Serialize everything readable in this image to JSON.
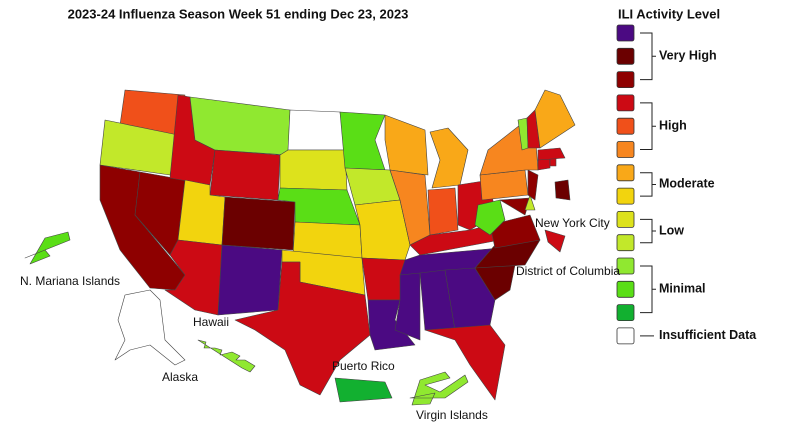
{
  "title": "2023-24 Influenza Season Week 51 ending Dec 23, 2023",
  "legend": {
    "title": "ILI Activity Level",
    "groups": [
      {
        "label": "Very High",
        "colors": [
          "#4b0a82",
          "#6b0000",
          "#8e0000"
        ]
      },
      {
        "label": "High",
        "colors": [
          "#cc0a14",
          "#f0501a",
          "#f7861f"
        ]
      },
      {
        "label": "Moderate",
        "colors": [
          "#f9a818",
          "#f2d40e"
        ]
      },
      {
        "label": "Low",
        "colors": [
          "#dde21c",
          "#c2e82a"
        ]
      },
      {
        "label": "Minimal",
        "colors": [
          "#90e830",
          "#5ade16",
          "#12b030"
        ]
      },
      {
        "label": "Insufficient Data",
        "colors": [
          "#ffffff"
        ]
      }
    ]
  },
  "labels": [
    "N. Mariana Islands",
    "Hawaii",
    "Alaska",
    "Puerto Rico",
    "Virgin Islands",
    "New York City",
    "District of Columbia"
  ],
  "regions": [
    "#f0501a",
    "#c2e82a",
    "#8e0000",
    "#8e0000",
    "#cc0a14",
    "#90e830",
    "#cc0a14",
    "#f2d40e",
    "#6b0000",
    "#cc0a14",
    "#4b0a82",
    "#ffffff",
    "#dde21c",
    "#5ade16",
    "#f2d40e",
    "#f2d40e",
    "#cc0a14",
    "#5ade16",
    "#c2e82a",
    "#f2d40e",
    "#cc0a14",
    "#4b0a82",
    "#f9a818",
    "#f7861f",
    "#f9a818",
    "#f0501a",
    "#cc0a14",
    "#cc0a14",
    "#4b0a82",
    "#4b0a82",
    "#4b0a82",
    "#4b0a82",
    "#cc0a14",
    "#6b0000",
    "#6b0000",
    "#8e0000",
    "#5ade16",
    "#f7861f",
    "#f7861f",
    "#8e0000",
    "#c2e82a",
    "#8e0000",
    "#cc0a14",
    "#cc0a14",
    "#cc0a14",
    "#90e830",
    "#cc0a14",
    "#f9a818",
    "#ffffff",
    "#90e830",
    "#12b030",
    "#90e830",
    "#5ade16",
    "#6b0000",
    "#cc0a14"
  ]
}
